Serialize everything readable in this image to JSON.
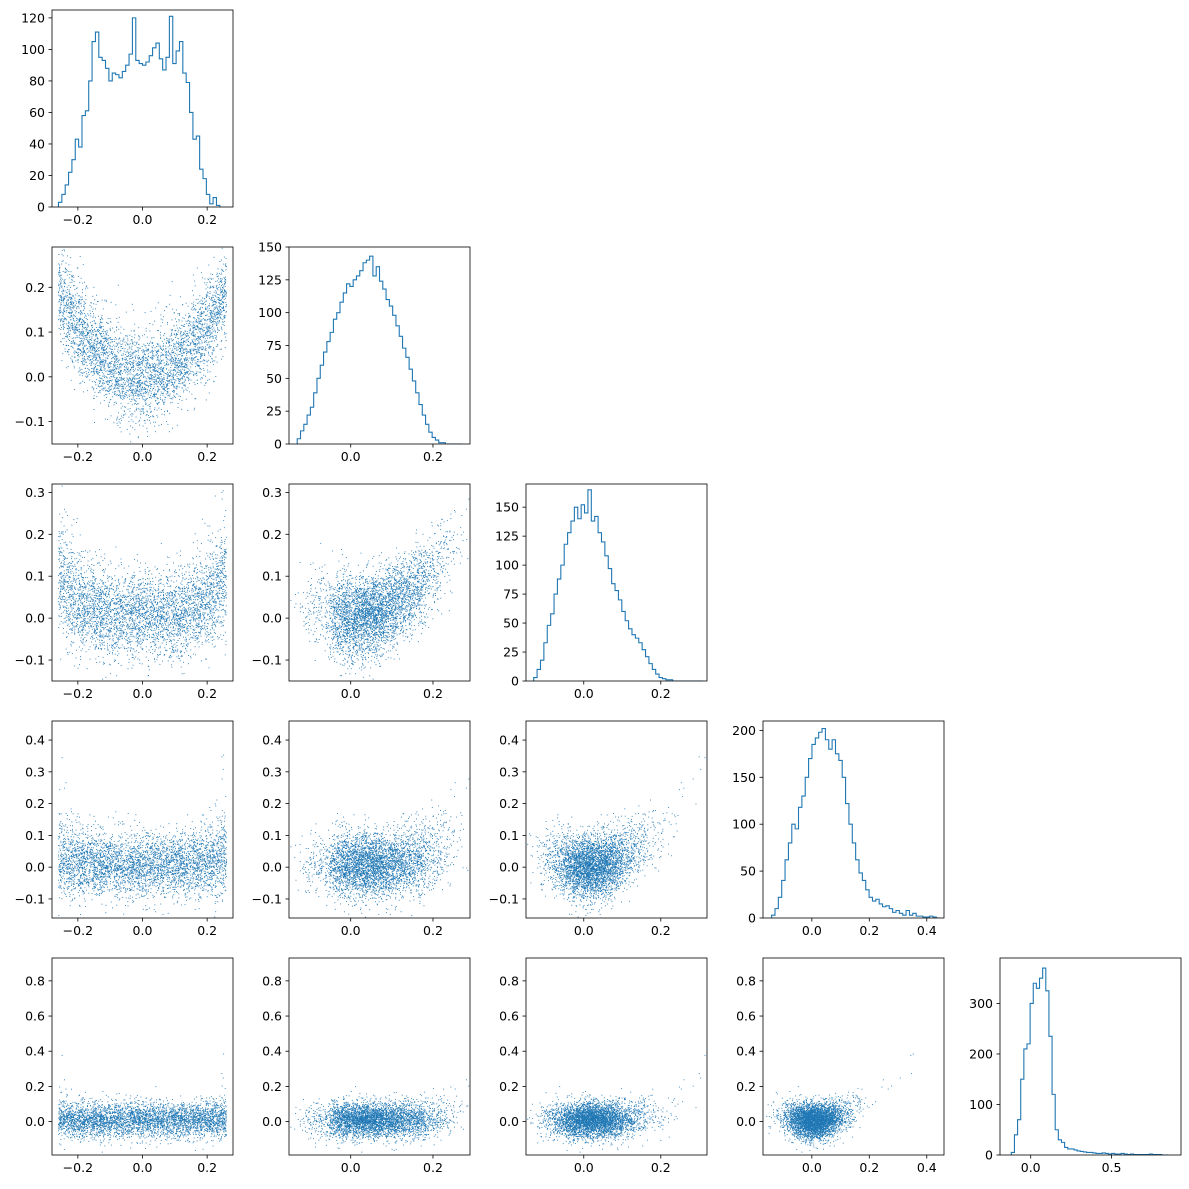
{
  "figure": {
    "type": "corner-plot",
    "n_params": 5,
    "series_color": "#1f77b4"
  },
  "chart_data": [
    {
      "type": "histogram",
      "row": 0,
      "col": 0,
      "xlim": [
        -0.28,
        0.28
      ],
      "ylim": [
        0,
        125
      ],
      "xticks": [
        -0.2,
        0.0,
        0.2
      ],
      "xtick_labels": [
        "−0.2",
        "0.0",
        "0.2"
      ],
      "yticks": [
        0,
        20,
        40,
        60,
        80,
        100,
        120
      ],
      "ytick_labels": [
        "0",
        "20",
        "40",
        "60",
        "80",
        "100",
        "120"
      ],
      "bin_start": -0.26,
      "bin_width": 0.0104,
      "counts": [
        3,
        8,
        14,
        22,
        30,
        43,
        38,
        58,
        61,
        80,
        105,
        111,
        95,
        93,
        88,
        80,
        85,
        84,
        82,
        86,
        90,
        97,
        120,
        93,
        91,
        90,
        92,
        96,
        101,
        104,
        94,
        87,
        95,
        121,
        91,
        99,
        105,
        85,
        79,
        60,
        43,
        45,
        24,
        18,
        8,
        2,
        6,
        1
      ]
    },
    {
      "type": "scatter",
      "row": 1,
      "col": 0,
      "xvar": 0,
      "yvar": 1,
      "xlim": [
        -0.28,
        0.28
      ],
      "ylim": [
        -0.15,
        0.29
      ],
      "xticks": [
        -0.2,
        0.0,
        0.2
      ],
      "xtick_labels": [
        "−0.2",
        "0.0",
        "0.2"
      ],
      "yticks": [
        -0.1,
        0.0,
        0.1,
        0.2
      ],
      "ytick_labels": [
        "−0.1",
        "0.0",
        "0.1",
        "0.2"
      ],
      "n_points": 4000,
      "relation": "y ≈ 2.8·x² + noise(σ 0.05)"
    },
    {
      "type": "histogram",
      "row": 1,
      "col": 1,
      "xlim": [
        -0.15,
        0.29
      ],
      "ylim": [
        0,
        150
      ],
      "xticks": [
        0.0,
        0.2
      ],
      "xtick_labels": [
        "0.0",
        "0.2"
      ],
      "yticks": [
        0,
        25,
        50,
        75,
        100,
        125,
        150
      ],
      "ytick_labels": [
        "0",
        "25",
        "50",
        "75",
        "100",
        "125",
        "150"
      ],
      "bin_start": -0.13,
      "bin_width": 0.008,
      "counts": [
        4,
        10,
        15,
        22,
        28,
        39,
        50,
        60,
        70,
        78,
        85,
        95,
        100,
        108,
        115,
        122,
        120,
        125,
        128,
        132,
        138,
        140,
        143,
        128,
        135,
        124,
        118,
        110,
        105,
        98,
        90,
        82,
        73,
        66,
        57,
        48,
        39,
        30,
        22,
        15,
        9,
        5,
        3,
        1,
        1,
        0,
        0,
        0,
        0,
        0
      ]
    },
    {
      "type": "scatter",
      "row": 2,
      "col": 0,
      "xvar": 0,
      "yvar": 2,
      "xlim": [
        -0.28,
        0.28
      ],
      "ylim": [
        -0.15,
        0.32
      ],
      "xticks": [
        -0.2,
        0.0,
        0.2
      ],
      "xtick_labels": [
        "−0.2",
        "0.0",
        "0.2"
      ],
      "yticks": [
        -0.1,
        0.0,
        0.1,
        0.2,
        0.3
      ],
      "ytick_labels": [
        "−0.1",
        "0.0",
        "0.1",
        "0.2",
        "0.3"
      ],
      "n_points": 4000
    },
    {
      "type": "scatter",
      "row": 2,
      "col": 1,
      "xvar": 1,
      "yvar": 2,
      "xlim": [
        -0.15,
        0.29
      ],
      "ylim": [
        -0.15,
        0.32
      ],
      "xticks": [
        0.0,
        0.2
      ],
      "xtick_labels": [
        "0.0",
        "0.2"
      ],
      "yticks": [
        -0.1,
        0.0,
        0.1,
        0.2,
        0.3
      ],
      "ytick_labels": [
        "−0.1",
        "0.0",
        "0.1",
        "0.2",
        "0.3"
      ],
      "n_points": 4000,
      "relation": "y ≈ 2.8·x² + noise(σ 0.05)"
    },
    {
      "type": "histogram",
      "row": 2,
      "col": 2,
      "xlim": [
        -0.15,
        0.32
      ],
      "ylim": [
        0,
        170
      ],
      "xticks": [
        0.0,
        0.2
      ],
      "xtick_labels": [
        "0.0",
        "0.2"
      ],
      "yticks": [
        0,
        25,
        50,
        75,
        100,
        125,
        150
      ],
      "ytick_labels": [
        "0",
        "25",
        "50",
        "75",
        "100",
        "125",
        "150"
      ],
      "bin_start": -0.13,
      "bin_width": 0.0088,
      "counts": [
        3,
        10,
        18,
        33,
        48,
        58,
        75,
        88,
        100,
        118,
        128,
        138,
        150,
        140,
        152,
        145,
        165,
        138,
        142,
        128,
        120,
        108,
        97,
        84,
        78,
        70,
        60,
        52,
        45,
        40,
        37,
        33,
        27,
        21,
        15,
        10,
        6,
        3,
        2,
        1,
        1,
        0,
        0,
        0,
        0,
        0,
        0,
        0,
        0,
        0
      ]
    },
    {
      "type": "scatter",
      "row": 3,
      "col": 0,
      "xvar": 0,
      "yvar": 3,
      "xlim": [
        -0.28,
        0.28
      ],
      "ylim": [
        -0.16,
        0.46
      ],
      "xticks": [
        -0.2,
        0.0,
        0.2
      ],
      "xtick_labels": [
        "−0.2",
        "0.0",
        "0.2"
      ],
      "yticks": [
        -0.1,
        0.0,
        0.1,
        0.2,
        0.3,
        0.4
      ],
      "ytick_labels": [
        "−0.1",
        "0.0",
        "0.1",
        "0.2",
        "0.3",
        "0.4"
      ],
      "n_points": 4000
    },
    {
      "type": "scatter",
      "row": 3,
      "col": 1,
      "xvar": 1,
      "yvar": 3,
      "xlim": [
        -0.15,
        0.29
      ],
      "ylim": [
        -0.16,
        0.46
      ],
      "xticks": [
        0.0,
        0.2
      ],
      "xtick_labels": [
        "0.0",
        "0.2"
      ],
      "yticks": [
        -0.1,
        0.0,
        0.1,
        0.2,
        0.3,
        0.4
      ],
      "ytick_labels": [
        "−0.1",
        "0.0",
        "0.1",
        "0.2",
        "0.3",
        "0.4"
      ],
      "n_points": 4000
    },
    {
      "type": "scatter",
      "row": 3,
      "col": 2,
      "xvar": 2,
      "yvar": 3,
      "xlim": [
        -0.15,
        0.32
      ],
      "ylim": [
        -0.16,
        0.46
      ],
      "xticks": [
        0.0,
        0.2
      ],
      "xtick_labels": [
        "0.0",
        "0.2"
      ],
      "yticks": [
        -0.1,
        0.0,
        0.1,
        0.2,
        0.3,
        0.4
      ],
      "ytick_labels": [
        "−0.1",
        "0.0",
        "0.1",
        "0.2",
        "0.3",
        "0.4"
      ],
      "n_points": 4000,
      "relation": "y ≈ 2.8·x² + noise(σ 0.05)"
    },
    {
      "type": "histogram",
      "row": 3,
      "col": 3,
      "xlim": [
        -0.17,
        0.46
      ],
      "ylim": [
        0,
        210
      ],
      "xticks": [
        0.0,
        0.2,
        0.4
      ],
      "xtick_labels": [
        "0.0",
        "0.2",
        "0.4"
      ],
      "yticks": [
        0,
        50,
        100,
        150,
        200
      ],
      "ytick_labels": [
        "0",
        "50",
        "100",
        "150",
        "200"
      ],
      "bin_start": -0.14,
      "bin_width": 0.0117,
      "counts": [
        3,
        10,
        22,
        40,
        62,
        80,
        100,
        95,
        118,
        130,
        150,
        170,
        185,
        192,
        198,
        202,
        190,
        180,
        190,
        175,
        168,
        150,
        122,
        100,
        80,
        62,
        48,
        40,
        30,
        22,
        18,
        20,
        15,
        12,
        13,
        10,
        6,
        8,
        5,
        3,
        8,
        3,
        5,
        2,
        2,
        1,
        1,
        2,
        1,
        0
      ]
    },
    {
      "type": "scatter",
      "row": 4,
      "col": 0,
      "xvar": 0,
      "yvar": 4,
      "xlim": [
        -0.28,
        0.28
      ],
      "ylim": [
        -0.19,
        0.93
      ],
      "xticks": [
        -0.2,
        0.0,
        0.2
      ],
      "xtick_labels": [
        "−0.2",
        "0.0",
        "0.2"
      ],
      "yticks": [
        0.0,
        0.2,
        0.4,
        0.6,
        0.8
      ],
      "ytick_labels": [
        "0.0",
        "0.2",
        "0.4",
        "0.6",
        "0.8"
      ],
      "n_points": 4000
    },
    {
      "type": "scatter",
      "row": 4,
      "col": 1,
      "xvar": 1,
      "yvar": 4,
      "xlim": [
        -0.15,
        0.29
      ],
      "ylim": [
        -0.19,
        0.93
      ],
      "xticks": [
        0.0,
        0.2
      ],
      "xtick_labels": [
        "0.0",
        "0.2"
      ],
      "yticks": [
        0.0,
        0.2,
        0.4,
        0.6,
        0.8
      ],
      "ytick_labels": [
        "0.0",
        "0.2",
        "0.4",
        "0.6",
        "0.8"
      ],
      "n_points": 4000
    },
    {
      "type": "scatter",
      "row": 4,
      "col": 2,
      "xvar": 2,
      "yvar": 4,
      "xlim": [
        -0.15,
        0.32
      ],
      "ylim": [
        -0.19,
        0.93
      ],
      "xticks": [
        0.0,
        0.2
      ],
      "xtick_labels": [
        "0.0",
        "0.2"
      ],
      "yticks": [
        0.0,
        0.2,
        0.4,
        0.6,
        0.8
      ],
      "ytick_labels": [
        "0.0",
        "0.2",
        "0.4",
        "0.6",
        "0.8"
      ],
      "n_points": 4000
    },
    {
      "type": "scatter",
      "row": 4,
      "col": 3,
      "xvar": 3,
      "yvar": 4,
      "xlim": [
        -0.17,
        0.46
      ],
      "ylim": [
        -0.19,
        0.93
      ],
      "xticks": [
        0.0,
        0.2,
        0.4
      ],
      "xtick_labels": [
        "0.0",
        "0.2",
        "0.4"
      ],
      "yticks": [
        0.0,
        0.2,
        0.4,
        0.6,
        0.8
      ],
      "ytick_labels": [
        "0.0",
        "0.2",
        "0.4",
        "0.6",
        "0.8"
      ],
      "n_points": 4000,
      "relation": "y ≈ 2.8·x² + noise(σ 0.05)"
    },
    {
      "type": "histogram",
      "row": 4,
      "col": 4,
      "xlim": [
        -0.19,
        0.93
      ],
      "ylim": [
        0,
        390
      ],
      "xticks": [
        0.0,
        0.5
      ],
      "xtick_labels": [
        "0.0",
        "0.5"
      ],
      "yticks": [
        0,
        100,
        200,
        300
      ],
      "ytick_labels": [
        "0",
        "100",
        "200",
        "300"
      ],
      "bin_start": -0.12,
      "bin_width": 0.0194,
      "counts": [
        5,
        40,
        70,
        150,
        210,
        220,
        300,
        340,
        330,
        350,
        370,
        325,
        235,
        120,
        50,
        30,
        25,
        15,
        12,
        12,
        10,
        8,
        7,
        6,
        5,
        5,
        4,
        3,
        3,
        4,
        3,
        2,
        3,
        2,
        2,
        3,
        2,
        1,
        2,
        1,
        1,
        1,
        1,
        1,
        2,
        1,
        1,
        1,
        0,
        0
      ]
    }
  ]
}
